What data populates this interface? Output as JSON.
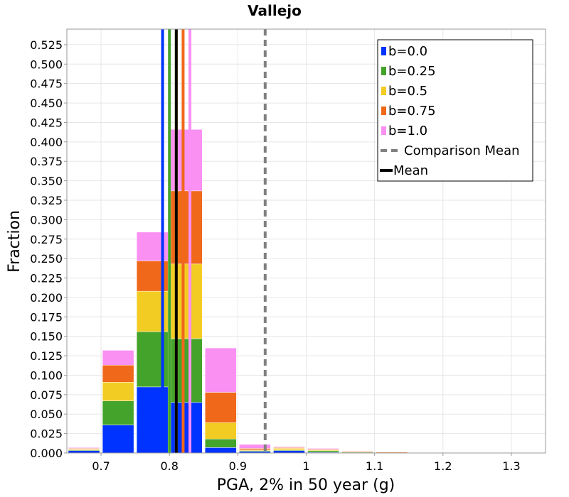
{
  "chart_data": {
    "type": "bar",
    "title": "Vallejo",
    "xlabel": "PGA, 2% in 50 year (g)",
    "ylabel": "Fraction",
    "xlim": [
      0.65,
      1.35
    ],
    "ylim": [
      0,
      0.545
    ],
    "xticks": [
      0.7,
      0.8,
      0.9,
      1,
      1.1,
      1.2,
      1.3
    ],
    "xtick_labels": [
      "0.7",
      "0.8",
      "0.9",
      "1",
      "1.1",
      "1.2",
      "1.3"
    ],
    "yticks": [
      0,
      0.025,
      0.05,
      0.075,
      0.1,
      0.125,
      0.15,
      0.175,
      0.2,
      0.225,
      0.25,
      0.275,
      0.3,
      0.325,
      0.35,
      0.375,
      0.4,
      0.425,
      0.45,
      0.475,
      0.5,
      0.525
    ],
    "ytick_labels": [
      "0.000",
      "0.025",
      "0.050",
      "0.075",
      "0.100",
      "0.125",
      "0.150",
      "0.175",
      "0.200",
      "0.225",
      "0.250",
      "0.275",
      "0.300",
      "0.325",
      "0.350",
      "0.375",
      "0.400",
      "0.425",
      "0.450",
      "0.475",
      "0.500",
      "0.525"
    ],
    "grid": true,
    "stacked": true,
    "bin_width": 0.05,
    "bin_centers": [
      0.675,
      0.725,
      0.775,
      0.825,
      0.875,
      0.925,
      0.975,
      1.025,
      1.075,
      1.125
    ],
    "series": [
      {
        "name": "b=0.0",
        "color": "#0033ff",
        "values": [
          0.003,
          0.036,
          0.085,
          0.065,
          0.007,
          0.002,
          0.003,
          0.001,
          0.0,
          0.0
        ]
      },
      {
        "name": "b=0.25",
        "color": "#44a32a",
        "values": [
          0.001,
          0.031,
          0.071,
          0.082,
          0.011,
          0.001,
          0.001,
          0.002,
          0.001,
          0.0
        ]
      },
      {
        "name": "b=0.5",
        "color": "#f2cc22",
        "values": [
          0.001,
          0.024,
          0.052,
          0.096,
          0.021,
          0.001,
          0.002,
          0.001,
          0.0,
          0.0
        ]
      },
      {
        "name": "b=0.75",
        "color": "#f0681a",
        "values": [
          0.001,
          0.022,
          0.039,
          0.094,
          0.039,
          0.002,
          0.001,
          0.001,
          0.001,
          0.001
        ]
      },
      {
        "name": "b=1.0",
        "color": "#f990f2",
        "values": [
          0.001,
          0.019,
          0.037,
          0.079,
          0.057,
          0.005,
          0.001,
          0.001,
          0.0,
          0.0
        ]
      }
    ],
    "vertical_lines": [
      {
        "name": "b=0.0 mean",
        "x": 0.79,
        "color": "#0033ff",
        "style": "solid"
      },
      {
        "name": "b=0.25 mean",
        "x": 0.8,
        "color": "#44a32a",
        "style": "solid"
      },
      {
        "name": "b=0.5 mean",
        "x": 0.81,
        "color": "#f2cc22",
        "style": "solid"
      },
      {
        "name": "b=0.75 mean",
        "x": 0.82,
        "color": "#f0681a",
        "style": "solid"
      },
      {
        "name": "b=1.0 mean",
        "x": 0.83,
        "color": "#f990f2",
        "style": "solid"
      },
      {
        "name": "Mean",
        "x": 0.81,
        "color": "#000000",
        "style": "solid"
      },
      {
        "name": "Comparison Mean",
        "x": 0.94,
        "color": "#808080",
        "style": "dashed"
      }
    ],
    "legend": {
      "position": "top-right",
      "entries": [
        {
          "label": "b=0.0",
          "color": "#0033ff",
          "kind": "box"
        },
        {
          "label": "b=0.25",
          "color": "#44a32a",
          "kind": "box"
        },
        {
          "label": "b=0.5",
          "color": "#f2cc22",
          "kind": "box"
        },
        {
          "label": "b=0.75",
          "color": "#f0681a",
          "kind": "box"
        },
        {
          "label": "b=1.0",
          "color": "#f990f2",
          "kind": "box"
        },
        {
          "label": "Comparison Mean",
          "color": "#808080",
          "kind": "dashed"
        },
        {
          "label": "Mean",
          "color": "#000000",
          "kind": "line"
        }
      ]
    }
  }
}
